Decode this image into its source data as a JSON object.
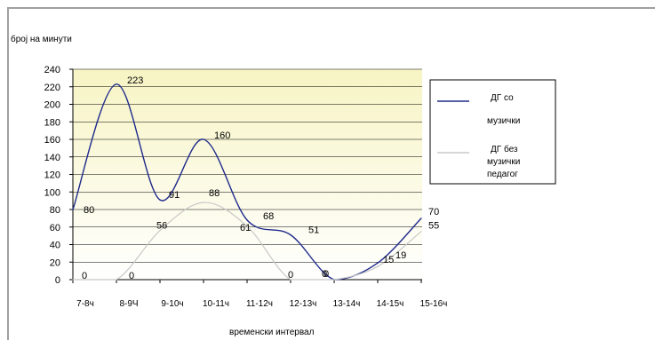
{
  "chart_data": {
    "type": "line",
    "ylabel": "број на минути",
    "xlabel": "временски интервал",
    "categories": [
      "7-8ч",
      "8-9Ч",
      "9-10ч",
      "10-11ч",
      "11-12ч",
      "12-13ч",
      "13-14ч",
      "14-15ч",
      "15-16ч"
    ],
    "ylim": [
      0,
      240
    ],
    "yticks": [
      0,
      20,
      40,
      60,
      80,
      100,
      120,
      140,
      160,
      180,
      200,
      220,
      240
    ],
    "grid": true,
    "legend_position": "right",
    "series": [
      {
        "name": "ДГ со музички",
        "legend_lines": [
          "ДГ со",
          "музички"
        ],
        "color": "#1f2a8c",
        "values": [
          80,
          223,
          91,
          160,
          68,
          51,
          0,
          19,
          70
        ],
        "labels": [
          "80",
          "223",
          "91",
          "160",
          "68",
          "51",
          "0",
          "19",
          "70"
        ]
      },
      {
        "name": "ДГ без музички педагог",
        "legend_lines": [
          "ДГ без",
          "музички",
          "педагог"
        ],
        "color": "#c8c8c8",
        "values": [
          0,
          0,
          56,
          88,
          61,
          0,
          0,
          15,
          55
        ],
        "labels": [
          "0",
          "0",
          "56",
          "88",
          "61",
          "0",
          "0",
          "15",
          "55"
        ]
      }
    ]
  }
}
